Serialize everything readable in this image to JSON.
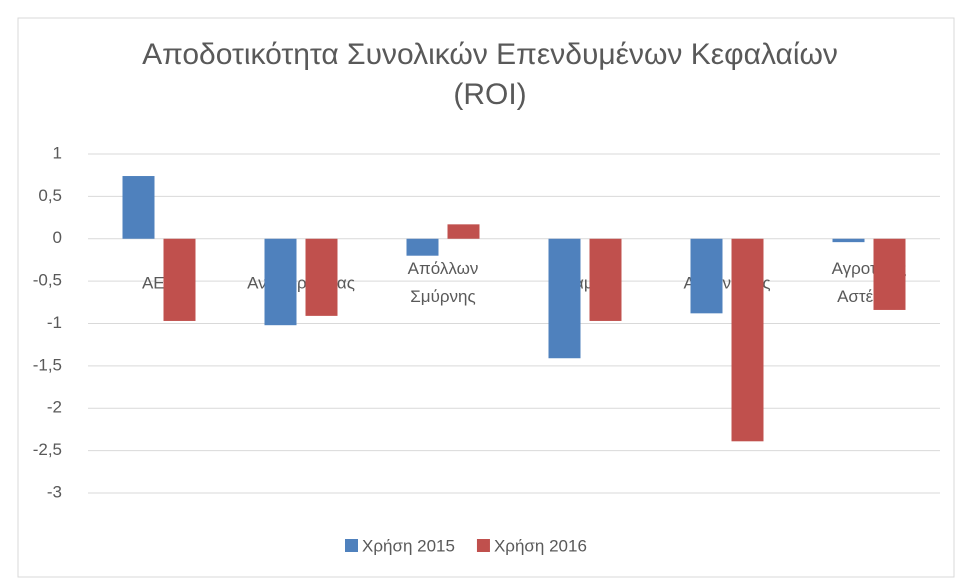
{
  "chart_data": {
    "type": "bar",
    "title": "Αποδοτικότητα Συνολικών Επενδυμένων Κεφαλαίων (ROI)",
    "categories": [
      "ΑΕΛ",
      "Αν. Καρδίτσας",
      "Απόλλων Σμύρνης",
      "Λαμία",
      "Αχαρναϊκός",
      "Αγροτικός Αστέρας"
    ],
    "series": [
      {
        "name": "Χρήση 2015",
        "color": "#4f81bd",
        "values": [
          0.74,
          -1.02,
          -0.2,
          -1.41,
          -0.88,
          -0.04
        ]
      },
      {
        "name": "Χρήση 2016",
        "color": "#c0504d",
        "values": [
          -0.97,
          -0.91,
          0.17,
          -0.97,
          -2.39,
          -0.84
        ]
      }
    ],
    "ylim": [
      -3,
      1
    ],
    "yticks": [
      {
        "value": -3,
        "label": "-3"
      },
      {
        "value": -2.5,
        "label": "-2,5"
      },
      {
        "value": -2,
        "label": "-2"
      },
      {
        "value": -1.5,
        "label": "-1,5"
      },
      {
        "value": -1,
        "label": "-1"
      },
      {
        "value": -0.5,
        "label": "-0,5"
      },
      0,
      {
        "value": 0.5,
        "label": "0,5"
      },
      1
    ],
    "grid": true,
    "legend": "bottom"
  }
}
